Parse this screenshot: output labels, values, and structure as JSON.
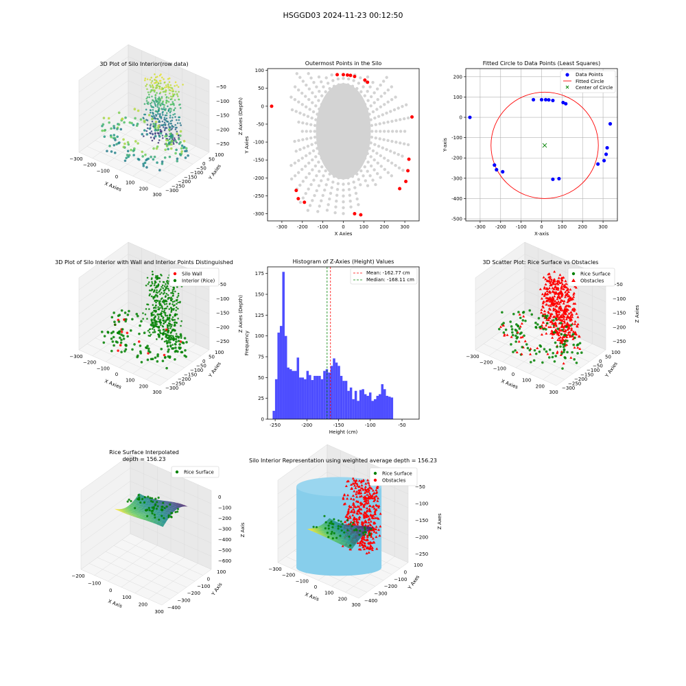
{
  "figure": {
    "suptitle": "HSGGD03 2024-11-23 00:12:50"
  },
  "colors": {
    "point_gray": "#d3d3d3",
    "red": "#ff0000",
    "blue": "#0000ff",
    "green": "#008000",
    "hist_blue": "#4d4dff",
    "sky": "#87ceeb"
  },
  "chart_data": [
    {
      "id": "p1",
      "type": "scatter3d",
      "title": "3D Plot of Silo Interior(row data)",
      "xlabel": "X Axies",
      "ylabel": "Y Axies",
      "zlabel": "Z Axies (Depth)",
      "xticks": [
        "−300",
        "−200",
        "−100",
        "0",
        "100",
        "200",
        "300"
      ],
      "yticks": [
        "100",
        "50",
        "0",
        "−50",
        "−100",
        "−150",
        "−200",
        "−250",
        "−300"
      ],
      "zticks": [
        "−50",
        "−100",
        "−150",
        "−200",
        "−250"
      ],
      "colormap": "viridis"
    },
    {
      "id": "p2",
      "type": "scatter",
      "title": "Outermost Points in the Silo",
      "xlabel": "X Axies",
      "ylabel": "Y Axies",
      "xlim": [
        -370,
        370
      ],
      "ylim": [
        -320,
        105
      ],
      "xticks": [
        -300,
        -200,
        -100,
        0,
        100,
        200,
        300
      ],
      "yticks": [
        100,
        50,
        0,
        -50,
        -100,
        -150,
        -200,
        -250,
        -300
      ],
      "series": [
        {
          "color": "#ff0000",
          "points": [
            [
              -350,
              0
            ],
            [
              -230,
              -235
            ],
            [
              -220,
              -258
            ],
            [
              -190,
              -268
            ],
            [
              -30,
              88
            ],
            [
              0,
              88
            ],
            [
              20,
              87
            ],
            [
              35,
              86
            ],
            [
              55,
              83
            ],
            [
              105,
              73
            ],
            [
              118,
              67
            ],
            [
              335,
              -30
            ],
            [
              320,
              -148
            ],
            [
              315,
              -180
            ],
            [
              305,
              -210
            ],
            [
              275,
              -230
            ],
            [
              55,
              -300
            ],
            [
              85,
              -303
            ]
          ]
        }
      ]
    },
    {
      "id": "p3",
      "type": "scatter",
      "title": "Fitted Circle to Data Points (Least Squares)",
      "xlabel": "X-axis",
      "ylabel": "Y-axis",
      "xlim": [
        -370,
        370
      ],
      "ylim": [
        -510,
        240
      ],
      "xticks": [
        -300,
        -200,
        -100,
        0,
        100,
        200,
        300
      ],
      "yticks": [
        200,
        100,
        0,
        -100,
        -200,
        -300,
        -400,
        -500
      ],
      "legend": [
        "Data Points",
        "Fitted Circle",
        "Center of Circle"
      ],
      "legend_position": "upper right",
      "grid": true,
      "data_points": [
        [
          -350,
          0
        ],
        [
          -230,
          -235
        ],
        [
          -220,
          -258
        ],
        [
          -190,
          -268
        ],
        [
          -40,
          87
        ],
        [
          0,
          87
        ],
        [
          20,
          87
        ],
        [
          35,
          86
        ],
        [
          55,
          83
        ],
        [
          105,
          73
        ],
        [
          118,
          67
        ],
        [
          335,
          -32
        ],
        [
          320,
          -150
        ],
        [
          315,
          -182
        ],
        [
          305,
          -213
        ],
        [
          275,
          -230
        ],
        [
          55,
          -305
        ],
        [
          85,
          -302
        ]
      ],
      "circle": {
        "cx": 15,
        "cy": -138,
        "r": 262
      },
      "center": [
        15,
        -138
      ]
    },
    {
      "id": "p4",
      "type": "scatter3d",
      "title": "3D Plot of Silo Interior with Wall and Interior Points Distinguished",
      "xlabel": "X Axies",
      "ylabel": "Y Axies",
      "zlabel": "Z Axies (Depth)",
      "xticks": [
        "−300",
        "−200",
        "−100",
        "0",
        "100",
        "200",
        "300"
      ],
      "yticks": [
        "100",
        "50",
        "0",
        "−50",
        "−100",
        "−150",
        "−200",
        "−250",
        "−300"
      ],
      "zticks": [
        "−50",
        "−100",
        "−150",
        "−200",
        "−250"
      ],
      "legend": [
        "Silo Wall",
        "Interior (Rice)"
      ]
    },
    {
      "id": "p5",
      "type": "bar",
      "title": "Histogram of Z-Axies (Height) Values",
      "xlabel": "Height (cm)",
      "ylabel": "Frequency",
      "xlim": [
        -262,
        -23
      ],
      "ylim": [
        0,
        183
      ],
      "xticks": [
        -250,
        -200,
        -150,
        -100,
        -50
      ],
      "yticks": [
        0,
        25,
        50,
        75,
        100,
        125,
        150,
        175
      ],
      "bin_start": -254,
      "bin_width": 3.8,
      "values": [
        10,
        48,
        104,
        112,
        177,
        100,
        62,
        60,
        58,
        58,
        74,
        50,
        50,
        48,
        58,
        53,
        47,
        52,
        52,
        52,
        48,
        58,
        60,
        56,
        64,
        73,
        68,
        64,
        52,
        46,
        46,
        34,
        38,
        24,
        34,
        22,
        35,
        36,
        30,
        28,
        32,
        22,
        24,
        28,
        30,
        42,
        36,
        28,
        27,
        26
      ],
      "mean": -162.77,
      "median": -168.11,
      "legend": [
        "Mean: -162.77 cm",
        "Median: -168.11 cm"
      ]
    },
    {
      "id": "p6",
      "type": "scatter3d",
      "title": "3D Scatter Plot: Rice Surface vs Obstacles",
      "xlabel": "X Axies",
      "ylabel": "Y Axies",
      "zlabel": "Z Axies",
      "xticks": [
        "−300",
        "−200",
        "−100",
        "0",
        "100",
        "200",
        "300"
      ],
      "yticks": [
        "100",
        "50",
        "0",
        "−50",
        "−100",
        "−150",
        "−200",
        "−250",
        "−300"
      ],
      "zticks": [
        "−50",
        "−100",
        "−150",
        "−200",
        "−250"
      ],
      "legend": [
        "Rice Surface",
        "Obstacles"
      ]
    },
    {
      "id": "p7",
      "type": "surface3d",
      "title": "Rice Surface Interpolated",
      "subtitle": "depth = 156.23",
      "xlabel": "X Axis",
      "ylabel": "Y Axis",
      "zlabel": "Z Axis",
      "xticks": [
        "−200",
        "−100",
        "0",
        "100",
        "200",
        "300"
      ],
      "yticks": [
        "100",
        "0",
        "−100",
        "−200",
        "−300",
        "−400"
      ],
      "zticks": [
        "0",
        "−100",
        "−200",
        "−300",
        "−400",
        "−500",
        "−600"
      ],
      "legend": [
        "Rice Surface"
      ]
    },
    {
      "id": "p8",
      "type": "surface3d",
      "title": "Silo Interior Representation using weighted average depth = 156.23",
      "xlabel": "X Axis",
      "ylabel": "Y Axes",
      "zlabel": "Z Axes",
      "xticks": [
        "−300",
        "−200",
        "−100",
        "0",
        "100",
        "200",
        "300"
      ],
      "yticks": [
        "100",
        "0",
        "−100",
        "−200",
        "−300",
        "−400"
      ],
      "zticks": [
        "−50",
        "−100",
        "−150",
        "−200",
        "−250"
      ],
      "legend": [
        "Rice Surface",
        "Obstacles"
      ]
    }
  ]
}
